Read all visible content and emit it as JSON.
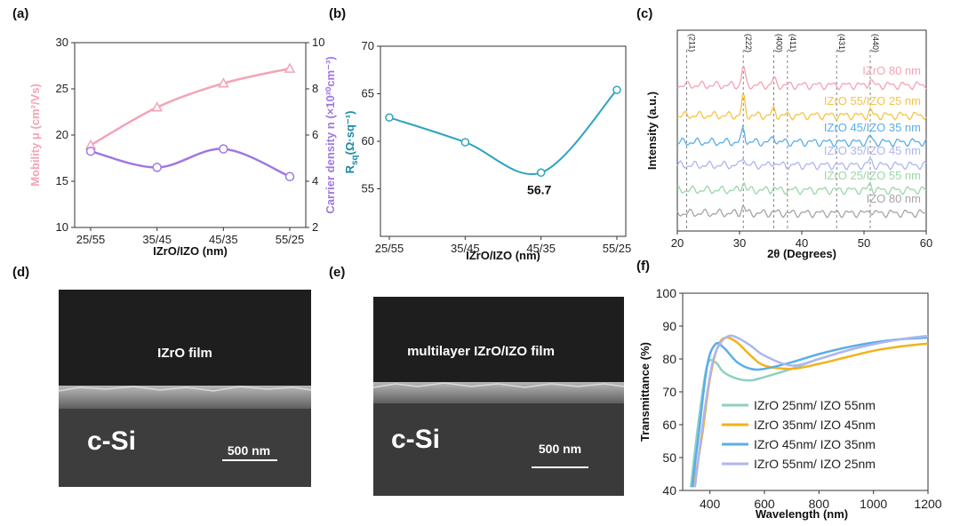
{
  "panel_labels": [
    "(a)",
    "(b)",
    "(c)",
    "(d)",
    "(e)",
    "(f)"
  ],
  "colors": {
    "pink": "#f4a3b5",
    "purple": "#a079e0",
    "teal": "#2ea3bf",
    "yellow": "#f7c343",
    "blue": "#5aaee8",
    "lavender": "#aeb6ef",
    "green": "#9cd6a8",
    "gray": "#a5a5a5",
    "orange": "#f3b21a",
    "mint": "#8fd0c0"
  },
  "sem": {
    "d": {
      "film_label": "IZrO film",
      "substrate_label": "c-Si",
      "scale_label": "500 nm"
    },
    "e": {
      "film_label": "multilayer IZrO/IZO film",
      "substrate_label": "c-Si",
      "scale_label": "500 nm"
    }
  },
  "chart_data": [
    {
      "panel": "a",
      "type": "line",
      "categories": [
        "25/55",
        "35/45",
        "45/35",
        "55/25"
      ],
      "xlabel": "IZrO/IZO (nm)",
      "left_axis": {
        "label": "Mobility μ (cm²/Vs)",
        "ylim": [
          10,
          30
        ],
        "ticks": [
          "10",
          "15",
          "20",
          "25",
          "30"
        ]
      },
      "right_axis": {
        "label": "Carrier density n (×10²⁰cm⁻³)",
        "ylim": [
          2,
          10
        ],
        "ticks": [
          "2",
          "4",
          "6",
          "8",
          "10"
        ]
      },
      "series": [
        {
          "name": "Mobility",
          "axis": "left",
          "values": [
            18.9,
            23.0,
            25.6,
            27.2
          ]
        },
        {
          "name": "Carrier density",
          "axis": "right",
          "values": [
            5.3,
            4.6,
            5.4,
            4.2
          ]
        }
      ]
    },
    {
      "panel": "b",
      "type": "line",
      "categories": [
        "25/55",
        "35/45",
        "45/35",
        "55/25"
      ],
      "xlabel": "IZrO/IZO (nm)",
      "ylabel": "Rsq (Ω·sq⁻¹)",
      "ylabel_main": "R",
      "ylabel_sub": "sq",
      "ylabel_rest": "(Ω·sq⁻¹)",
      "ylim": [
        50,
        70
      ],
      "yticks": [
        "55",
        "60",
        "65",
        "70"
      ],
      "values": [
        62.5,
        59.9,
        56.7,
        65.4
      ],
      "annotation": "56.7"
    },
    {
      "panel": "c",
      "type": "line",
      "xlabel": "2θ (Degrees)",
      "ylabel": "Intensity (a.u.)",
      "xlim": [
        20,
        60
      ],
      "xticks": [
        "20",
        "30",
        "40",
        "50",
        "60"
      ],
      "reference_peaks": [
        {
          "label": "(211)",
          "x": 21.5
        },
        {
          "label": "(222)",
          "x": 30.6
        },
        {
          "label": "(400)",
          "x": 35.5
        },
        {
          "label": "(411)",
          "x": 37.7
        },
        {
          "label": "(431)",
          "x": 45.6
        },
        {
          "label": "(440)",
          "x": 51.0
        }
      ],
      "series": [
        {
          "name": "IZrO 80 nm",
          "peaks": [
            {
              "x": 30.6,
              "h": 1.0
            },
            {
              "x": 35.5,
              "h": 0.35
            },
            {
              "x": 51.0,
              "h": 0.3
            }
          ]
        },
        {
          "name": "IZrO 55/IZO 25 nm",
          "peaks": [
            {
              "x": 30.6,
              "h": 1.0
            },
            {
              "x": 35.5,
              "h": 0.3
            },
            {
              "x": 51.0,
              "h": 0.25
            }
          ]
        },
        {
          "name": "IZrO 45/IZO 35 nm",
          "peaks": [
            {
              "x": 30.6,
              "h": 0.7
            },
            {
              "x": 35.5,
              "h": 0.3
            },
            {
              "x": 51.0,
              "h": 0.3
            }
          ]
        },
        {
          "name": "IZrO 35/IZO 45 nm",
          "peaks": [
            {
              "x": 30.6,
              "h": 0.5
            },
            {
              "x": 35.5,
              "h": 0.2
            },
            {
              "x": 51.0,
              "h": 0.3
            }
          ]
        },
        {
          "name": "IZrO 25/IZO 55 nm",
          "peaks": [
            {
              "x": 30.6,
              "h": 0.45
            },
            {
              "x": 35.5,
              "h": 0.15
            },
            {
              "x": 51.0,
              "h": 0.35
            }
          ]
        },
        {
          "name": "IZO 80 nm",
          "peaks": [
            {
              "x": 30.6,
              "h": 0.4
            },
            {
              "x": 35.5,
              "h": 0.1
            },
            {
              "x": 51.0,
              "h": 0.2
            }
          ]
        }
      ]
    },
    {
      "panel": "f",
      "type": "line",
      "xlabel": "Wavelength (nm)",
      "ylabel": "Transmittance (%)",
      "xlim": [
        300,
        1200
      ],
      "ylim": [
        40,
        100
      ],
      "xticks": [
        "400",
        "600",
        "800",
        "1000",
        "1200"
      ],
      "yticks": [
        "40",
        "50",
        "60",
        "70",
        "80",
        "90",
        "100"
      ],
      "series": [
        {
          "name": "IZrO 25nm/ IZO 55nm",
          "x": [
            330,
            360,
            390,
            420,
            450,
            500,
            550,
            600,
            700,
            800,
            900,
            1000,
            1100,
            1200
          ],
          "y": [
            41,
            62,
            78,
            79,
            76,
            74,
            73.5,
            74.5,
            77,
            80,
            82.5,
            84.5,
            86,
            87
          ]
        },
        {
          "name": "IZrO 35nm/ IZO 45nm",
          "x": [
            340,
            370,
            400,
            430,
            460,
            500,
            550,
            600,
            700,
            800,
            900,
            1000,
            1100,
            1200
          ],
          "y": [
            41,
            56,
            74,
            84,
            86.5,
            85,
            81,
            78,
            77,
            78.5,
            80.5,
            82.5,
            83.8,
            84.7
          ]
        },
        {
          "name": "IZrO 45nm/ IZO 35nm",
          "x": [
            335,
            360,
            390,
            420,
            450,
            500,
            550,
            600,
            700,
            800,
            900,
            1000,
            1100,
            1200
          ],
          "y": [
            41,
            58,
            78,
            84.5,
            83.5,
            79,
            77,
            77,
            79,
            81.5,
            83.5,
            85,
            86,
            86.5
          ]
        },
        {
          "name": "IZrO 55nm/ IZO 25nm",
          "x": [
            345,
            380,
            410,
            440,
            470,
            500,
            550,
            600,
            700,
            800,
            900,
            1000,
            1100,
            1200
          ],
          "y": [
            41,
            64,
            79,
            85,
            87,
            86.5,
            84,
            81,
            78,
            80,
            82.5,
            84.5,
            86,
            87
          ]
        }
      ]
    }
  ]
}
